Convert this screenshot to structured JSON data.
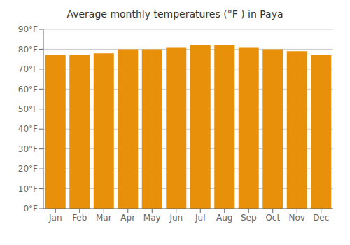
{
  "chart_data": {
    "type": "bar",
    "title": "Average monthly temperatures (°F ) in Paya",
    "categories": [
      "Jan",
      "Feb",
      "Mar",
      "Apr",
      "May",
      "Jun",
      "Jul",
      "Aug",
      "Sep",
      "Oct",
      "Nov",
      "Dec"
    ],
    "values": [
      77,
      77,
      78,
      80,
      80,
      81,
      82,
      82,
      81,
      80,
      79,
      77
    ],
    "color": "#E8900A",
    "ylim": [
      0,
      90
    ],
    "yticks": [
      {
        "value": 0,
        "label": "0°F"
      },
      {
        "value": 10,
        "label": "10°F"
      },
      {
        "value": 20,
        "label": "20°F"
      },
      {
        "value": 30,
        "label": "30°F"
      },
      {
        "value": 40,
        "label": "40°F"
      },
      {
        "value": 50,
        "label": "50°F"
      },
      {
        "value": 60,
        "label": "60°F"
      },
      {
        "value": 70,
        "label": "70°F"
      },
      {
        "value": 80,
        "label": "80°F"
      },
      {
        "value": 90,
        "label": "90°F"
      }
    ],
    "grid": true
  }
}
